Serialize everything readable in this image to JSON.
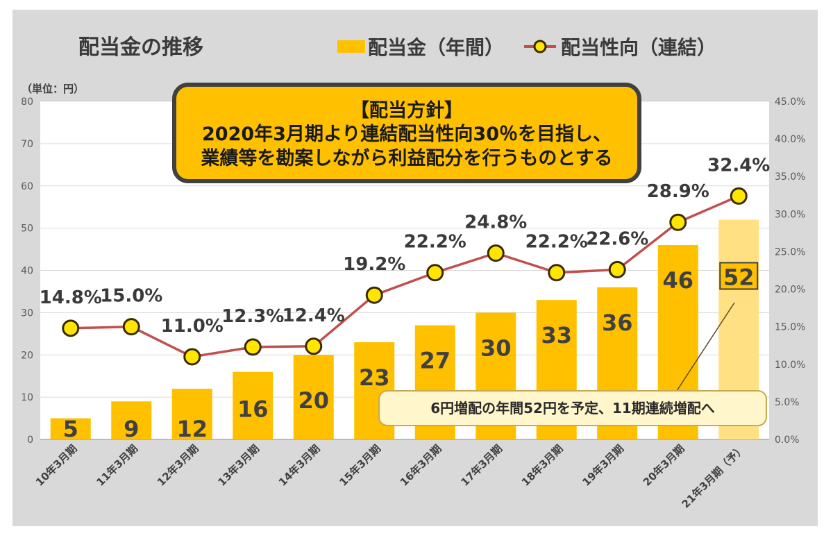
{
  "chart_data": {
    "type": "bar",
    "title": "配当金の推移",
    "unit_label": "（単位：円）",
    "categories": [
      "10年3月期",
      "11年3月期",
      "12年3月期",
      "13年3月期",
      "14年3月期",
      "15年3月期",
      "16年3月期",
      "17年3月期",
      "18年3月期",
      "19年3月期",
      "20年3月期",
      "21年3月期（予）"
    ],
    "series": [
      {
        "name": "配当金（年間）",
        "type": "bar",
        "axis": "left",
        "color": "#ffc000",
        "forecast_color": "#ffe083",
        "values": [
          5,
          9,
          12,
          16,
          20,
          23,
          27,
          30,
          33,
          36,
          46,
          52
        ]
      },
      {
        "name": "配当性向（連結）",
        "type": "line",
        "axis": "right",
        "line_color": "#c0504d",
        "marker_color": "#ffe500",
        "values": [
          14.8,
          15.0,
          11.0,
          12.3,
          12.4,
          19.2,
          22.2,
          24.8,
          22.2,
          22.6,
          28.9,
          32.4
        ],
        "labels": [
          "14.8%",
          "15.0%",
          "11.0%",
          "12.3%",
          "12.4%",
          "19.2%",
          "22.2%",
          "24.8%",
          "22.2%",
          "22.6%",
          "28.9%",
          "32.4%"
        ]
      }
    ],
    "bar_labels": [
      "5",
      "9",
      "12",
      "16",
      "20",
      "23",
      "27",
      "30",
      "33",
      "36",
      "46",
      "52"
    ],
    "ylim": [
      0,
      80
    ],
    "yticks": [
      "0",
      "10",
      "20",
      "30",
      "40",
      "50",
      "60",
      "70",
      "80"
    ],
    "y2lim": [
      0,
      45
    ],
    "y2ticks": [
      "0.0%",
      "5.0%",
      "10.0%",
      "15.0%",
      "20.0%",
      "25.0%",
      "30.0%",
      "35.0%",
      "40.0%",
      "45.0%"
    ],
    "grid": true,
    "legend": "top-right",
    "annotations": {
      "policy_title": "【配当方針】",
      "policy_line1": "2020年3月期より連結配当性向30％を目指し、",
      "policy_line2": "業績等を勘案しながら利益配分を行うものとする",
      "callout": "6円増配の年間52円を予定、11期連続増配へ"
    }
  }
}
